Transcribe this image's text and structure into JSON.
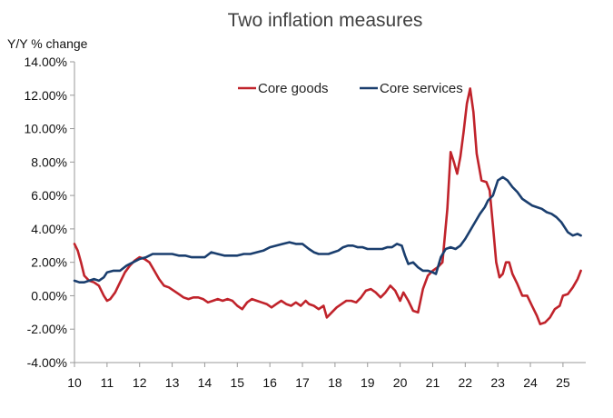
{
  "chart_data": {
    "type": "line",
    "title": "Two inflation measures",
    "ylabel": "Y/Y % change",
    "xlabel": "",
    "ylim": [
      -4,
      14
    ],
    "xlim": [
      10,
      25.7
    ],
    "grid": false,
    "legend_position": "top-right",
    "yticks": [
      14,
      12,
      10,
      8,
      6,
      4,
      2,
      0,
      -2,
      -4
    ],
    "ytick_labels": [
      "14.00%",
      "12.00%",
      "10.00%",
      "8.00%",
      "6.00%",
      "4.00%",
      "2.00%",
      "0.00%",
      "-2.00%",
      "-4.00%"
    ],
    "xticks": [
      10,
      11,
      12,
      13,
      14,
      15,
      16,
      17,
      18,
      19,
      20,
      21,
      22,
      23,
      24,
      25
    ],
    "xtick_labels": [
      "10",
      "11",
      "12",
      "13",
      "14",
      "15",
      "16",
      "17",
      "18",
      "19",
      "20",
      "21",
      "22",
      "23",
      "24",
      "25"
    ],
    "series": [
      {
        "name": "Core goods",
        "color": "#c0232b",
        "points": [
          [
            10.0,
            3.1
          ],
          [
            10.1,
            2.7
          ],
          [
            10.2,
            2.0
          ],
          [
            10.3,
            1.2
          ],
          [
            10.45,
            0.9
          ],
          [
            10.6,
            0.8
          ],
          [
            10.75,
            0.6
          ],
          [
            10.9,
            0.0
          ],
          [
            11.0,
            -0.3
          ],
          [
            11.1,
            -0.2
          ],
          [
            11.25,
            0.2
          ],
          [
            11.4,
            0.8
          ],
          [
            11.55,
            1.4
          ],
          [
            11.7,
            1.8
          ],
          [
            11.85,
            2.1
          ],
          [
            12.0,
            2.3
          ],
          [
            12.15,
            2.2
          ],
          [
            12.3,
            2.0
          ],
          [
            12.45,
            1.5
          ],
          [
            12.6,
            1.0
          ],
          [
            12.75,
            0.6
          ],
          [
            12.9,
            0.5
          ],
          [
            13.05,
            0.3
          ],
          [
            13.2,
            0.1
          ],
          [
            13.35,
            -0.1
          ],
          [
            13.5,
            -0.2
          ],
          [
            13.65,
            -0.1
          ],
          [
            13.8,
            -0.1
          ],
          [
            13.95,
            -0.2
          ],
          [
            14.1,
            -0.4
          ],
          [
            14.25,
            -0.3
          ],
          [
            14.4,
            -0.2
          ],
          [
            14.55,
            -0.3
          ],
          [
            14.7,
            -0.2
          ],
          [
            14.85,
            -0.3
          ],
          [
            15.0,
            -0.6
          ],
          [
            15.15,
            -0.8
          ],
          [
            15.3,
            -0.4
          ],
          [
            15.45,
            -0.2
          ],
          [
            15.6,
            -0.3
          ],
          [
            15.75,
            -0.4
          ],
          [
            15.9,
            -0.5
          ],
          [
            16.05,
            -0.7
          ],
          [
            16.2,
            -0.5
          ],
          [
            16.35,
            -0.3
          ],
          [
            16.5,
            -0.5
          ],
          [
            16.65,
            -0.6
          ],
          [
            16.8,
            -0.4
          ],
          [
            16.95,
            -0.6
          ],
          [
            17.1,
            -0.3
          ],
          [
            17.2,
            -0.5
          ],
          [
            17.35,
            -0.6
          ],
          [
            17.5,
            -0.8
          ],
          [
            17.65,
            -0.6
          ],
          [
            17.75,
            -1.3
          ],
          [
            17.9,
            -1.0
          ],
          [
            18.05,
            -0.7
          ],
          [
            18.2,
            -0.5
          ],
          [
            18.35,
            -0.3
          ],
          [
            18.5,
            -0.3
          ],
          [
            18.65,
            -0.4
          ],
          [
            18.8,
            -0.1
          ],
          [
            18.95,
            0.3
          ],
          [
            19.1,
            0.4
          ],
          [
            19.25,
            0.2
          ],
          [
            19.4,
            -0.1
          ],
          [
            19.55,
            0.2
          ],
          [
            19.7,
            0.6
          ],
          [
            19.85,
            0.3
          ],
          [
            20.0,
            -0.3
          ],
          [
            20.1,
            0.2
          ],
          [
            20.25,
            -0.3
          ],
          [
            20.4,
            -0.9
          ],
          [
            20.55,
            -1.0
          ],
          [
            20.7,
            0.4
          ],
          [
            20.85,
            1.2
          ],
          [
            21.0,
            1.5
          ],
          [
            21.15,
            1.7
          ],
          [
            21.3,
            2.0
          ],
          [
            21.45,
            5.2
          ],
          [
            21.55,
            8.6
          ],
          [
            21.65,
            8.0
          ],
          [
            21.75,
            7.3
          ],
          [
            21.85,
            8.3
          ],
          [
            21.95,
            9.8
          ],
          [
            22.05,
            11.5
          ],
          [
            22.15,
            12.4
          ],
          [
            22.25,
            11.0
          ],
          [
            22.35,
            8.5
          ],
          [
            22.5,
            6.9
          ],
          [
            22.65,
            6.8
          ],
          [
            22.75,
            6.3
          ],
          [
            22.85,
            4.2
          ],
          [
            22.95,
            2.0
          ],
          [
            23.05,
            1.1
          ],
          [
            23.15,
            1.3
          ],
          [
            23.25,
            2.0
          ],
          [
            23.35,
            2.0
          ],
          [
            23.45,
            1.3
          ],
          [
            23.6,
            0.7
          ],
          [
            23.75,
            0.0
          ],
          [
            23.9,
            0.0
          ],
          [
            24.05,
            -0.6
          ],
          [
            24.2,
            -1.2
          ],
          [
            24.3,
            -1.7
          ],
          [
            24.45,
            -1.6
          ],
          [
            24.6,
            -1.3
          ],
          [
            24.75,
            -0.8
          ],
          [
            24.9,
            -0.6
          ],
          [
            25.0,
            0.0
          ],
          [
            25.15,
            0.1
          ],
          [
            25.3,
            0.5
          ],
          [
            25.45,
            1.0
          ],
          [
            25.55,
            1.5
          ]
        ]
      },
      {
        "name": "Core services",
        "color": "#1a3e6e",
        "points": [
          [
            10.0,
            0.9
          ],
          [
            10.15,
            0.8
          ],
          [
            10.3,
            0.8
          ],
          [
            10.45,
            0.9
          ],
          [
            10.6,
            1.0
          ],
          [
            10.75,
            0.9
          ],
          [
            10.9,
            1.1
          ],
          [
            11.0,
            1.4
          ],
          [
            11.2,
            1.5
          ],
          [
            11.4,
            1.5
          ],
          [
            11.6,
            1.8
          ],
          [
            11.8,
            2.0
          ],
          [
            12.0,
            2.2
          ],
          [
            12.2,
            2.3
          ],
          [
            12.4,
            2.5
          ],
          [
            12.6,
            2.5
          ],
          [
            12.8,
            2.5
          ],
          [
            13.0,
            2.5
          ],
          [
            13.2,
            2.4
          ],
          [
            13.4,
            2.4
          ],
          [
            13.6,
            2.3
          ],
          [
            13.8,
            2.3
          ],
          [
            14.0,
            2.3
          ],
          [
            14.2,
            2.6
          ],
          [
            14.4,
            2.5
          ],
          [
            14.6,
            2.4
          ],
          [
            14.8,
            2.4
          ],
          [
            15.0,
            2.4
          ],
          [
            15.2,
            2.5
          ],
          [
            15.4,
            2.5
          ],
          [
            15.6,
            2.6
          ],
          [
            15.8,
            2.7
          ],
          [
            16.0,
            2.9
          ],
          [
            16.2,
            3.0
          ],
          [
            16.4,
            3.1
          ],
          [
            16.6,
            3.2
          ],
          [
            16.8,
            3.1
          ],
          [
            17.0,
            3.1
          ],
          [
            17.2,
            2.8
          ],
          [
            17.35,
            2.6
          ],
          [
            17.5,
            2.5
          ],
          [
            17.65,
            2.5
          ],
          [
            17.8,
            2.5
          ],
          [
            17.95,
            2.6
          ],
          [
            18.1,
            2.7
          ],
          [
            18.25,
            2.9
          ],
          [
            18.4,
            3.0
          ],
          [
            18.55,
            3.0
          ],
          [
            18.7,
            2.9
          ],
          [
            18.85,
            2.9
          ],
          [
            19.0,
            2.8
          ],
          [
            19.15,
            2.8
          ],
          [
            19.3,
            2.8
          ],
          [
            19.45,
            2.8
          ],
          [
            19.6,
            2.9
          ],
          [
            19.75,
            2.9
          ],
          [
            19.9,
            3.1
          ],
          [
            20.05,
            3.0
          ],
          [
            20.15,
            2.4
          ],
          [
            20.25,
            1.9
          ],
          [
            20.4,
            2.0
          ],
          [
            20.55,
            1.7
          ],
          [
            20.7,
            1.5
          ],
          [
            20.85,
            1.5
          ],
          [
            21.0,
            1.4
          ],
          [
            21.1,
            1.3
          ],
          [
            21.25,
            2.3
          ],
          [
            21.4,
            2.8
          ],
          [
            21.55,
            2.9
          ],
          [
            21.7,
            2.8
          ],
          [
            21.85,
            3.0
          ],
          [
            22.0,
            3.4
          ],
          [
            22.15,
            3.9
          ],
          [
            22.3,
            4.4
          ],
          [
            22.45,
            4.9
          ],
          [
            22.6,
            5.3
          ],
          [
            22.7,
            5.7
          ],
          [
            22.85,
            6.0
          ],
          [
            23.0,
            6.9
          ],
          [
            23.15,
            7.1
          ],
          [
            23.3,
            6.9
          ],
          [
            23.45,
            6.5
          ],
          [
            23.6,
            6.2
          ],
          [
            23.75,
            5.8
          ],
          [
            23.9,
            5.6
          ],
          [
            24.05,
            5.4
          ],
          [
            24.2,
            5.3
          ],
          [
            24.35,
            5.2
          ],
          [
            24.5,
            5.0
          ],
          [
            24.65,
            4.9
          ],
          [
            24.8,
            4.7
          ],
          [
            24.95,
            4.4
          ],
          [
            25.05,
            4.1
          ],
          [
            25.15,
            3.8
          ],
          [
            25.3,
            3.6
          ],
          [
            25.45,
            3.7
          ],
          [
            25.55,
            3.6
          ]
        ]
      }
    ]
  }
}
